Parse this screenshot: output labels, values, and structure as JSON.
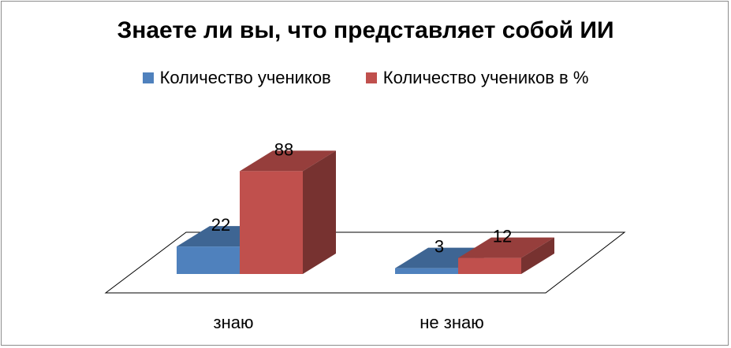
{
  "chart_data": {
    "type": "bar",
    "title": "Знаете ли вы, что представляет собой ИИ",
    "categories": [
      "знаю",
      "не знаю"
    ],
    "series": [
      {
        "name": "Количество учеников",
        "values": [
          22,
          3
        ],
        "color": "#4f81bd"
      },
      {
        "name": "Количество учеников в %",
        "values": [
          88,
          12
        ],
        "color": "#c0504d"
      }
    ],
    "ylim": [
      0,
      100
    ],
    "legend": "top",
    "grid": false,
    "style": "3d-bar"
  }
}
